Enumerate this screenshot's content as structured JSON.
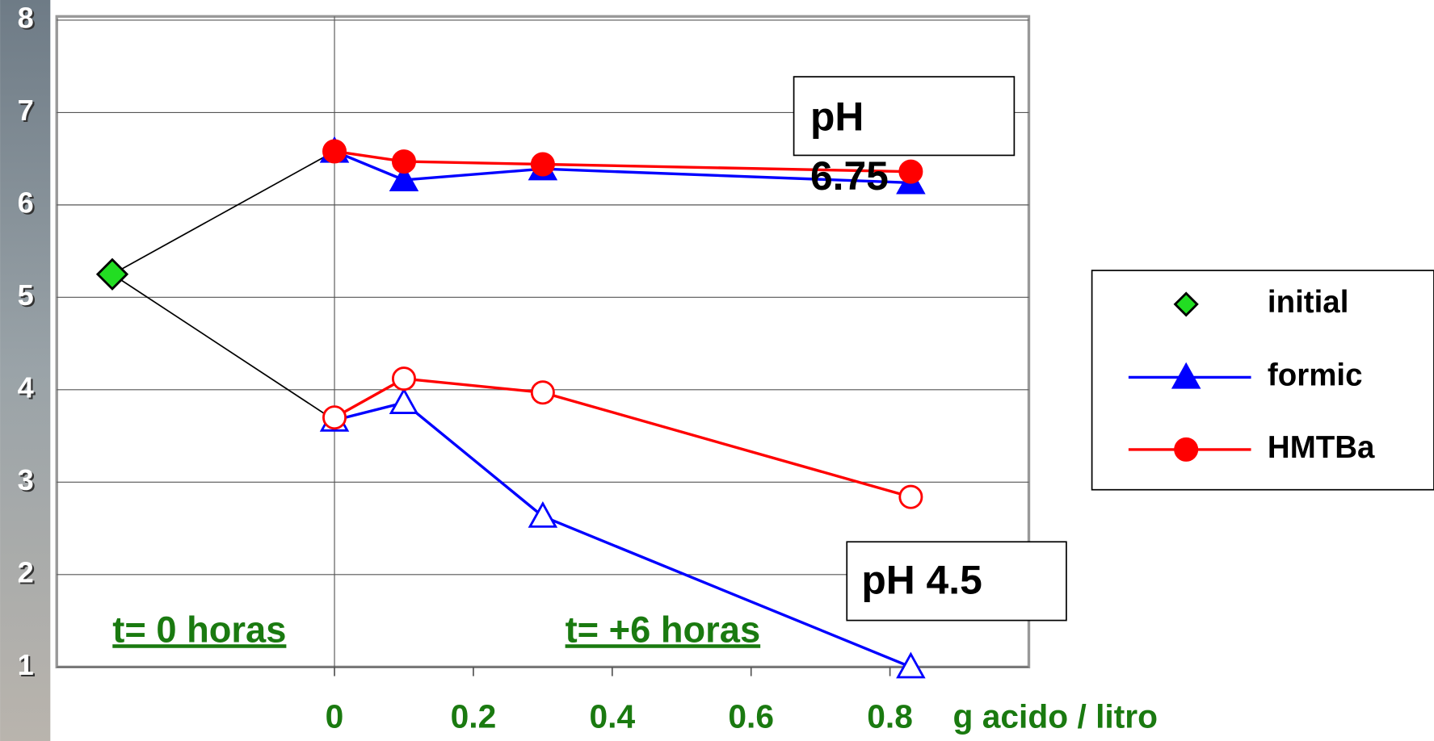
{
  "chart_data": {
    "type": "line",
    "xlim": [
      -0.4,
      1.0
    ],
    "xticks": [
      0,
      0.2,
      0.4,
      0.6,
      0.8
    ],
    "ylim": [
      1,
      8
    ],
    "yticks": [
      1,
      2,
      3,
      4,
      5,
      6,
      7,
      8
    ],
    "grid": true,
    "x_label": "g acido / litro",
    "legend": "right",
    "series": [
      {
        "name": "initial",
        "color": "#22dd22",
        "marker": "diamond",
        "runs": [
          {
            "x": [
              -0.32
            ],
            "values": [
              5.25
            ],
            "filled": true
          }
        ]
      },
      {
        "name": "formic",
        "color": "#0000ff",
        "marker": "triangle",
        "runs": [
          {
            "x": [
              0,
              0.1,
              0.3,
              0.83
            ],
            "values": [
              6.58,
              6.27,
              6.39,
              6.24
            ],
            "filled": true
          },
          {
            "x": [
              0,
              0.1,
              0.3,
              0.83
            ],
            "values": [
              3.67,
              3.86,
              2.63,
              1.0
            ],
            "filled": false
          }
        ]
      },
      {
        "name": "HMTBa",
        "color": "#ff0000",
        "marker": "circle",
        "runs": [
          {
            "x": [
              0,
              0.1,
              0.3,
              0.83
            ],
            "values": [
              6.58,
              6.47,
              6.44,
              6.36
            ],
            "filled": true
          },
          {
            "x": [
              0,
              0.1,
              0.3,
              0.83
            ],
            "values": [
              3.7,
              4.12,
              3.97,
              2.84
            ],
            "filled": false
          }
        ]
      }
    ],
    "annotations": {
      "high_line1": "pH",
      "high_line2": "6.75",
      "low": "pH 4.5",
      "t0": "t= 0 horas",
      "t6": "t= +6 horas"
    }
  }
}
